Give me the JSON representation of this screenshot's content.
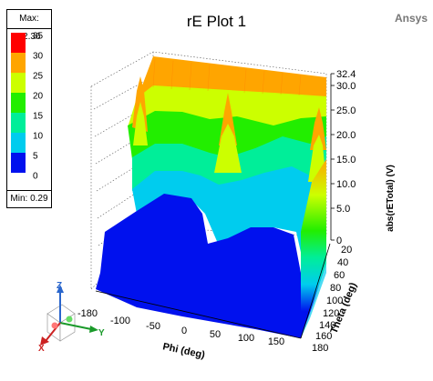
{
  "title": "rE Plot 1",
  "brand": "Ansys",
  "legend": {
    "max_label": "Max: 32.36",
    "min_label": "Min: 0.29",
    "levels": [
      {
        "label": "35",
        "color": "#ff0000"
      },
      {
        "label": "30",
        "color": "#ffa500"
      },
      {
        "label": "25",
        "color": "#ccff00"
      },
      {
        "label": "20",
        "color": "#22ee00"
      },
      {
        "label": "15",
        "color": "#00ee99"
      },
      {
        "label": "10",
        "color": "#00ccee"
      },
      {
        "label": "5",
        "color": "#0011ee"
      },
      {
        "label": "0",
        "color": null
      }
    ]
  },
  "axes": {
    "z_label": "abs(rETotal) (V)",
    "z_ticks": [
      "32.4",
      "30.0",
      "25.0",
      "20.0",
      "15.0",
      "10.0",
      "5.0",
      "0"
    ],
    "phi_label": "Phi (deg)",
    "phi_ticks": [
      "-180",
      "-100",
      "-50",
      "0",
      "50",
      "100",
      "150"
    ],
    "theta_label": "Theta (deg)",
    "theta_ticks": [
      "20",
      "40",
      "60",
      "80",
      "100",
      "120",
      "140",
      "160",
      "180"
    ]
  },
  "triad": {
    "x": "X",
    "y": "Y",
    "z": "Z"
  },
  "chart_data": {
    "type": "surface",
    "title": "rE Plot 1",
    "xlabel": "Phi (deg)",
    "ylabel": "Theta (deg)",
    "zlabel": "abs(rETotal) (V)",
    "zlim": [
      0,
      32.4
    ],
    "max": 32.36,
    "min": 0.29,
    "phi_peaks": [
      -150,
      -50,
      150
    ],
    "colormap_levels": [
      0,
      5,
      10,
      15,
      20,
      25,
      30,
      35
    ]
  }
}
